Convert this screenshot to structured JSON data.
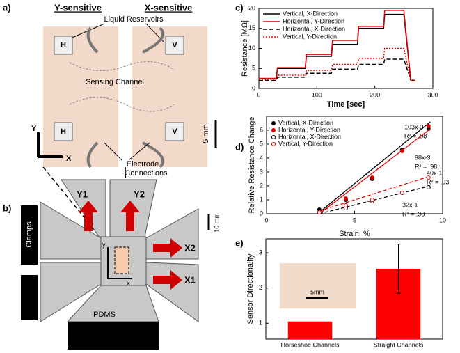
{
  "panel_a": {
    "label": "a)",
    "y_sensitive": "Y-sensitive",
    "x_sensitive": "X-sensitive",
    "reservoirs": "Liquid Reservoirs",
    "channel": "Sensing Channel",
    "electrode_line1": "Electrode",
    "electrode_line2": "Connections",
    "sensors": [
      "H",
      "V",
      "H",
      "V"
    ],
    "scale": "5 mm",
    "axis_y": "Y",
    "axis_x": "X"
  },
  "panel_b": {
    "label": "b)",
    "arms": [
      "Y1",
      "Y2",
      "X2",
      "X1"
    ],
    "clamps": "Clamps",
    "pdms": "PDMS",
    "scale": "10 mm",
    "axis_y": "y",
    "axis_x": "x"
  },
  "chart_data": [
    {
      "type": "line",
      "panel": "c)",
      "ylabel": "Resistance [MΩ]",
      "xlabel": "Time [sec]",
      "x": [
        0,
        30,
        32,
        80,
        82,
        125,
        127,
        170,
        172,
        215,
        217,
        250,
        262,
        270
      ],
      "xlim": [
        0,
        300
      ],
      "xticks": [
        0,
        100,
        200,
        300
      ],
      "ylim": [
        0,
        20
      ],
      "yticks": [
        0,
        5,
        10,
        15,
        20
      ],
      "series": [
        {
          "name": "Vertical, X-Direction",
          "color": "#000000",
          "style": "solid",
          "values": [
            2.5,
            2.5,
            5,
            5,
            8,
            8,
            11,
            11,
            15,
            15,
            18.5,
            18.5,
            2,
            2
          ]
        },
        {
          "name": "Horizontal, Y-Direction",
          "color": "#e00000",
          "style": "solid",
          "values": [
            2.5,
            2.5,
            5.2,
            5.2,
            8.5,
            8.5,
            12,
            12,
            15.5,
            15.5,
            19.5,
            19.5,
            2,
            2
          ]
        },
        {
          "name": "Horizontal, X-Direction",
          "color": "#000000",
          "style": "dashed",
          "values": [
            2,
            2,
            2.8,
            2.8,
            3.8,
            3.8,
            4.8,
            4.8,
            6,
            6,
            7.3,
            7.3,
            2,
            2
          ]
        },
        {
          "name": "Vertical, Y-Direction",
          "color": "#e00000",
          "style": "dotted",
          "values": [
            2.3,
            2.3,
            3.3,
            3.3,
            4.5,
            4.5,
            6,
            6,
            7.5,
            7.5,
            10,
            10,
            2,
            2
          ]
        }
      ]
    },
    {
      "type": "scatter",
      "panel": "d)",
      "ylabel": "Relative Resistance Change",
      "xlabel": "Strain, %",
      "x": [
        3,
        4.5,
        6,
        7.7,
        9.2
      ],
      "fit_x": [
        3,
        9.3
      ],
      "xlim": [
        0,
        10
      ],
      "xticks": [
        0,
        5,
        10
      ],
      "ylim": [
        0,
        7
      ],
      "yticks": [
        0,
        1,
        2,
        3,
        4,
        5,
        6
      ],
      "series": [
        {
          "name": "Vertical, X-Direction",
          "color": "#000000",
          "marker": "filled",
          "values": [
            0.3,
            1.0,
            2.5,
            4.6,
            6.1
          ],
          "fit": [
            0.1,
            6.6
          ],
          "equation": "103x-3",
          "r2": "R² = .98"
        },
        {
          "name": "Horizontal, Y-Direction",
          "color": "#e00000",
          "marker": "filled",
          "values": [
            0.1,
            1.1,
            2.6,
            4.5,
            6.3
          ],
          "fit": [
            0,
            6.1
          ],
          "equation": "98x-3",
          "r2": "R² = .98"
        },
        {
          "name": "Horizontal, X-Direction",
          "color": "#000000",
          "marker": "open",
          "values": [
            0.1,
            0.4,
            0.9,
            1.5,
            1.9
          ],
          "fit": [
            0,
            2
          ],
          "equation": "32x-1",
          "r2": "R² = .98"
        },
        {
          "name": "Vertical, Y-Direction",
          "color": "#e00000",
          "marker": "open",
          "values": [
            0.1,
            0.6,
            1.0,
            1.5,
            2.6
          ],
          "fit": [
            0.2,
            2.7
          ],
          "equation": "40x-1",
          "r2": "R² = .93"
        }
      ]
    },
    {
      "type": "bar",
      "panel": "e)",
      "ylabel": "Sensor Directionality",
      "inset_label": "5mm",
      "categories": [
        "Horseshoe Channels",
        "Straight Channels"
      ],
      "values": [
        1.05,
        2.55
      ],
      "errors": [
        null,
        0.7
      ],
      "color": "#ff0000",
      "ylim": [
        0.55,
        3.4
      ],
      "yticks": [
        1,
        2,
        3
      ]
    }
  ]
}
